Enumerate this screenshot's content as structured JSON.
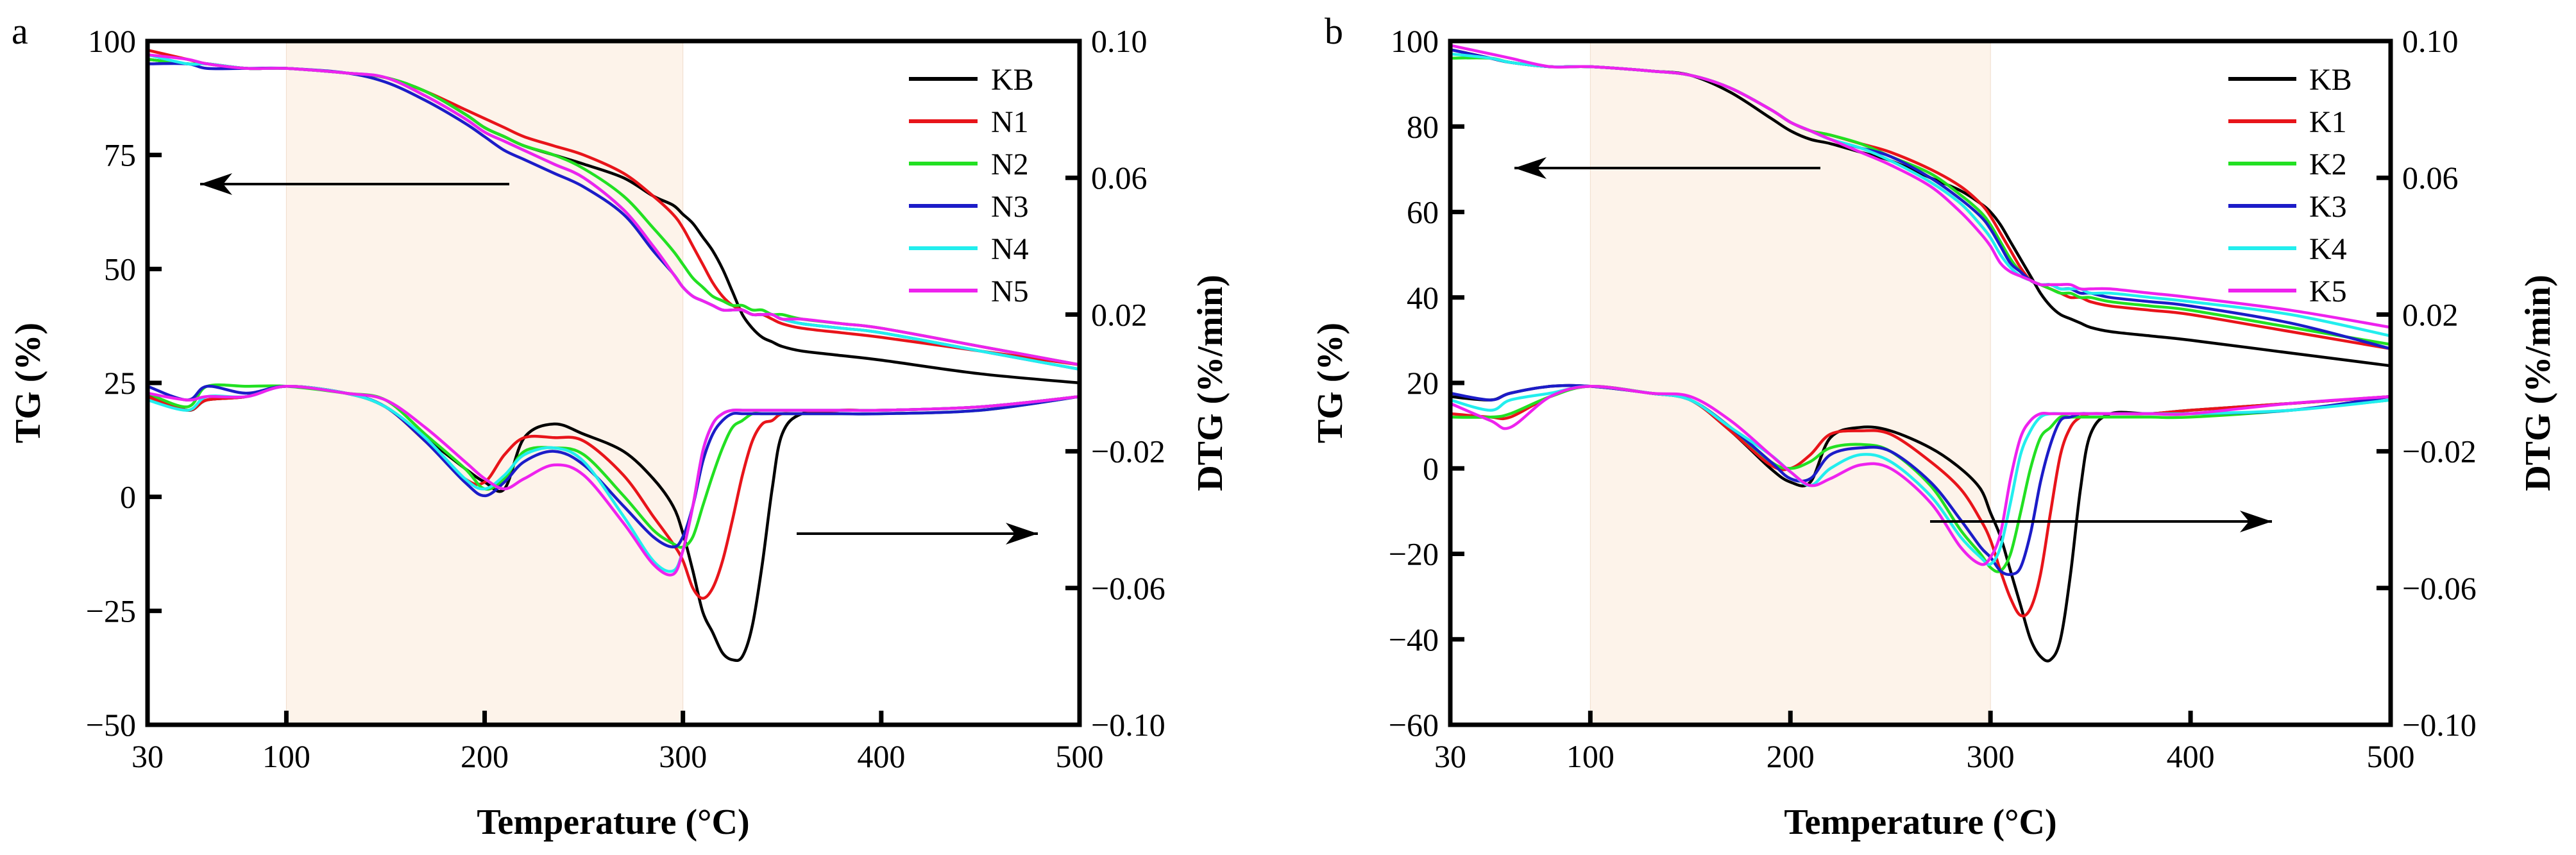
{
  "chart_data": [
    {
      "panel_label": "a",
      "type": "line",
      "xlabel": "Temperature (°C)",
      "ylabel": "TG (%)",
      "y2label": "DTG (%/min)",
      "xlim": [
        30,
        500
      ],
      "ylim": [
        -50,
        100
      ],
      "y2lim": [
        -0.1,
        0.1
      ],
      "xticks": [
        30,
        100,
        200,
        300,
        400,
        500
      ],
      "yticks": [
        100,
        75,
        50,
        25,
        0,
        -25,
        -50
      ],
      "y2ticks": [
        0.1,
        0.06,
        0.02,
        -0.02,
        -0.06,
        -0.1
      ],
      "shaded_region_x": [
        100,
        300
      ],
      "shaded_color": "#fdf3ea",
      "legend_position": "top-right",
      "annotations": [
        "arrow pointing left to TG axis",
        "arrow pointing right to DTG axis"
      ],
      "x": [
        30,
        50,
        60,
        80,
        100,
        130,
        150,
        170,
        190,
        200,
        210,
        220,
        235,
        250,
        270,
        285,
        295,
        300,
        305,
        310,
        315,
        320,
        325,
        330,
        335,
        340,
        345,
        350,
        360,
        380,
        400,
        450,
        500
      ],
      "series": [
        {
          "name": "KB",
          "color": "#000000",
          "TG": [
            96,
            95,
            95,
            94,
            94,
            93,
            92,
            89,
            84,
            81,
            79,
            77,
            75,
            73,
            70,
            66,
            64,
            62,
            60,
            57,
            54,
            50,
            45,
            40,
            37,
            35,
            34,
            33,
            32,
            31,
            30,
            27,
            25
          ],
          "DTG": [
            -0.003,
            -0.008,
            -0.005,
            -0.004,
            -0.001,
            -0.003,
            -0.007,
            -0.016,
            -0.025,
            -0.029,
            -0.031,
            -0.016,
            -0.012,
            -0.015,
            -0.02,
            -0.028,
            -0.036,
            -0.044,
            -0.055,
            -0.067,
            -0.073,
            -0.079,
            -0.081,
            -0.08,
            -0.071,
            -0.053,
            -0.031,
            -0.015,
            -0.009,
            -0.008,
            -0.008,
            -0.007,
            -0.004
          ]
        },
        {
          "name": "N1",
          "color": "#e8141a",
          "TG": [
            98,
            96,
            95,
            94,
            94,
            93,
            92,
            89,
            85,
            83,
            81,
            79,
            77,
            75,
            71,
            66,
            62,
            59,
            55,
            51,
            47,
            44,
            42,
            41,
            40,
            40,
            39,
            38,
            37,
            36,
            35,
            32,
            29
          ],
          "DTG": [
            -0.004,
            -0.008,
            -0.005,
            -0.004,
            -0.001,
            -0.003,
            -0.007,
            -0.017,
            -0.028,
            -0.029,
            -0.021,
            -0.016,
            -0.016,
            -0.017,
            -0.027,
            -0.039,
            -0.047,
            -0.052,
            -0.06,
            -0.063,
            -0.06,
            -0.052,
            -0.04,
            -0.027,
            -0.017,
            -0.012,
            -0.011,
            -0.009,
            -0.009,
            -0.008,
            -0.008,
            -0.007,
            -0.004
          ]
        },
        {
          "name": "N2",
          "color": "#22e022",
          "TG": [
            96,
            95,
            95,
            94,
            94,
            93,
            92,
            89,
            84,
            81,
            79,
            77,
            75,
            72,
            66,
            59,
            54,
            51,
            48,
            46,
            44,
            43,
            42,
            42,
            41,
            41,
            40,
            40,
            39,
            38,
            37,
            33,
            29
          ],
          "DTG": [
            -0.003,
            -0.007,
            -0.001,
            -0.001,
            -0.001,
            -0.003,
            -0.005,
            -0.015,
            -0.025,
            -0.031,
            -0.028,
            -0.02,
            -0.019,
            -0.021,
            -0.033,
            -0.043,
            -0.047,
            -0.048,
            -0.045,
            -0.036,
            -0.027,
            -0.019,
            -0.013,
            -0.011,
            -0.009,
            -0.009,
            -0.009,
            -0.009,
            -0.009,
            -0.009,
            -0.009,
            -0.008,
            -0.004
          ]
        },
        {
          "name": "N3",
          "color": "#1c1cc8",
          "TG": [
            95,
            95,
            94,
            94,
            94,
            93,
            91,
            87,
            82,
            79,
            76,
            74,
            71,
            68,
            62,
            54,
            49,
            46,
            44,
            43,
            42,
            41,
            41,
            41,
            40,
            40,
            40,
            39,
            38,
            37,
            36,
            32,
            28
          ],
          "DTG": [
            -0.001,
            -0.005,
            -0.001,
            -0.003,
            -0.001,
            -0.003,
            -0.007,
            -0.017,
            -0.029,
            -0.033,
            -0.029,
            -0.023,
            -0.02,
            -0.024,
            -0.036,
            -0.045,
            -0.048,
            -0.045,
            -0.036,
            -0.023,
            -0.015,
            -0.011,
            -0.009,
            -0.009,
            -0.009,
            -0.009,
            -0.009,
            -0.009,
            -0.009,
            -0.009,
            -0.009,
            -0.008,
            -0.004
          ]
        },
        {
          "name": "N4",
          "color": "#22eeee",
          "TG": [
            97,
            95,
            95,
            94,
            94,
            93,
            92,
            88,
            83,
            80,
            78,
            76,
            73,
            70,
            63,
            55,
            49,
            46,
            44,
            43,
            42,
            41,
            41,
            41,
            40,
            40,
            40,
            39,
            38,
            37,
            36,
            32,
            28
          ],
          "DTG": [
            -0.005,
            -0.008,
            -0.004,
            -0.004,
            -0.001,
            -0.003,
            -0.007,
            -0.016,
            -0.028,
            -0.031,
            -0.027,
            -0.021,
            -0.019,
            -0.023,
            -0.039,
            -0.052,
            -0.055,
            -0.049,
            -0.036,
            -0.02,
            -0.012,
            -0.009,
            -0.008,
            -0.008,
            -0.008,
            -0.008,
            -0.008,
            -0.008,
            -0.008,
            -0.008,
            -0.008,
            -0.007,
            -0.004
          ]
        },
        {
          "name": "N5",
          "color": "#ee22ee",
          "TG": [
            97,
            96,
            95,
            94,
            94,
            93,
            92,
            88,
            83,
            80,
            78,
            76,
            73,
            70,
            63,
            55,
            49,
            46,
            44,
            43,
            42,
            41,
            41,
            41,
            40,
            40,
            40,
            39,
            39,
            38,
            37,
            33,
            29
          ],
          "DTG": [
            -0.003,
            -0.005,
            -0.004,
            -0.004,
            -0.001,
            -0.003,
            -0.005,
            -0.013,
            -0.023,
            -0.028,
            -0.031,
            -0.028,
            -0.024,
            -0.027,
            -0.041,
            -0.053,
            -0.056,
            -0.049,
            -0.036,
            -0.02,
            -0.012,
            -0.009,
            -0.008,
            -0.008,
            -0.008,
            -0.008,
            -0.008,
            -0.008,
            -0.008,
            -0.008,
            -0.008,
            -0.007,
            -0.004
          ]
        }
      ]
    },
    {
      "panel_label": "b",
      "type": "line",
      "xlabel": "Temperature (°C)",
      "ylabel": "TG (%)",
      "y2label": "DTG (%/min)",
      "xlim": [
        30,
        500
      ],
      "ylim": [
        -60,
        100
      ],
      "y2lim": [
        -0.1,
        0.1
      ],
      "xticks": [
        30,
        100,
        200,
        300,
        400,
        500
      ],
      "yticks": [
        100,
        80,
        60,
        40,
        20,
        0,
        -20,
        -40,
        -60
      ],
      "y2ticks": [
        0.1,
        0.06,
        0.02,
        -0.02,
        -0.06,
        -0.1
      ],
      "shaded_region_x": [
        100,
        300
      ],
      "shaded_color": "#fdf3ea",
      "legend_position": "top-right",
      "annotations": [
        "arrow pointing left to TG axis",
        "arrow pointing right to DTG axis"
      ],
      "x": [
        30,
        50,
        60,
        80,
        100,
        130,
        150,
        170,
        190,
        200,
        210,
        220,
        235,
        250,
        270,
        285,
        295,
        300,
        305,
        310,
        315,
        320,
        325,
        330,
        335,
        340,
        345,
        350,
        360,
        380,
        400,
        450,
        500
      ],
      "series": [
        {
          "name": "KB",
          "color": "#000000",
          "TG": [
            98,
            96,
            95,
            94,
            94,
            93,
            92,
            88,
            82,
            79,
            77,
            76,
            74,
            72,
            68,
            65,
            62,
            60,
            57,
            53,
            49,
            45,
            41,
            38,
            36,
            35,
            34,
            33,
            32,
            31,
            30,
            27,
            24
          ],
          "DTG": [
            -0.004,
            -0.005,
            -0.003,
            -0.001,
            -0.001,
            -0.003,
            -0.005,
            -0.014,
            -0.025,
            -0.029,
            -0.029,
            -0.016,
            -0.013,
            -0.014,
            -0.019,
            -0.025,
            -0.031,
            -0.038,
            -0.045,
            -0.055,
            -0.065,
            -0.075,
            -0.08,
            -0.081,
            -0.075,
            -0.056,
            -0.031,
            -0.015,
            -0.009,
            -0.009,
            -0.008,
            -0.006,
            -0.004
          ]
        },
        {
          "name": "K1",
          "color": "#e8141a",
          "TG": [
            98,
            96,
            95,
            94,
            94,
            93,
            92,
            89,
            84,
            81,
            79,
            78,
            76,
            74,
            70,
            66,
            62,
            59,
            55,
            51,
            47,
            44,
            43,
            42,
            41,
            40,
            40,
            39,
            38,
            37,
            36,
            32,
            28
          ],
          "DTG": [
            -0.009,
            -0.01,
            -0.01,
            -0.004,
            -0.001,
            -0.003,
            -0.005,
            -0.014,
            -0.024,
            -0.025,
            -0.021,
            -0.015,
            -0.014,
            -0.015,
            -0.023,
            -0.031,
            -0.04,
            -0.046,
            -0.055,
            -0.063,
            -0.068,
            -0.066,
            -0.056,
            -0.038,
            -0.021,
            -0.013,
            -0.01,
            -0.009,
            -0.009,
            -0.009,
            -0.008,
            -0.006,
            -0.004
          ]
        },
        {
          "name": "K2",
          "color": "#22e022",
          "TG": [
            96,
            96,
            95,
            94,
            94,
            93,
            92,
            89,
            84,
            81,
            79,
            78,
            76,
            73,
            69,
            64,
            60,
            57,
            53,
            49,
            46,
            44,
            43,
            42,
            41,
            41,
            40,
            40,
            39,
            38,
            37,
            33,
            29
          ],
          "DTG": [
            -0.01,
            -0.01,
            -0.009,
            -0.004,
            -0.001,
            -0.003,
            -0.005,
            -0.013,
            -0.023,
            -0.025,
            -0.023,
            -0.019,
            -0.018,
            -0.02,
            -0.03,
            -0.043,
            -0.05,
            -0.054,
            -0.055,
            -0.05,
            -0.038,
            -0.025,
            -0.016,
            -0.013,
            -0.01,
            -0.01,
            -0.01,
            -0.01,
            -0.01,
            -0.01,
            -0.01,
            -0.008,
            -0.005
          ]
        },
        {
          "name": "K3",
          "color": "#1c1cc8",
          "TG": [
            98,
            96,
            95,
            94,
            94,
            93,
            92,
            89,
            84,
            81,
            79,
            77,
            75,
            73,
            68,
            63,
            59,
            56,
            52,
            48,
            46,
            44,
            43,
            43,
            42,
            42,
            41,
            41,
            40,
            39,
            38,
            34,
            28
          ],
          "DTG": [
            -0.003,
            -0.005,
            -0.003,
            -0.001,
            -0.001,
            -0.003,
            -0.005,
            -0.013,
            -0.023,
            -0.028,
            -0.028,
            -0.021,
            -0.019,
            -0.02,
            -0.029,
            -0.04,
            -0.048,
            -0.051,
            -0.055,
            -0.056,
            -0.054,
            -0.044,
            -0.029,
            -0.018,
            -0.011,
            -0.01,
            -0.009,
            -0.009,
            -0.009,
            -0.009,
            -0.009,
            -0.008,
            -0.004
          ]
        },
        {
          "name": "K4",
          "color": "#22eeee",
          "TG": [
            97,
            96,
            95,
            94,
            94,
            93,
            92,
            89,
            84,
            81,
            79,
            77,
            75,
            72,
            67,
            62,
            57,
            54,
            50,
            47,
            45,
            44,
            43,
            43,
            42,
            42,
            42,
            41,
            41,
            40,
            39,
            36,
            31
          ],
          "DTG": [
            -0.005,
            -0.008,
            -0.005,
            -0.003,
            -0.001,
            -0.003,
            -0.005,
            -0.013,
            -0.021,
            -0.026,
            -0.03,
            -0.025,
            -0.021,
            -0.023,
            -0.033,
            -0.045,
            -0.051,
            -0.053,
            -0.048,
            -0.035,
            -0.021,
            -0.014,
            -0.01,
            -0.009,
            -0.009,
            -0.009,
            -0.009,
            -0.009,
            -0.009,
            -0.009,
            -0.009,
            -0.008,
            -0.005
          ]
        },
        {
          "name": "K5",
          "color": "#ee22ee",
          "TG": [
            99,
            97,
            96,
            94,
            94,
            93,
            92,
            89,
            84,
            81,
            79,
            77,
            74,
            71,
            66,
            60,
            55,
            52,
            48,
            46,
            45,
            44,
            43,
            43,
            43,
            43,
            42,
            42,
            42,
            41,
            40,
            37,
            33
          ],
          "DTG": [
            -0.006,
            -0.011,
            -0.013,
            -0.004,
            -0.001,
            -0.003,
            -0.004,
            -0.011,
            -0.021,
            -0.026,
            -0.03,
            -0.028,
            -0.024,
            -0.025,
            -0.035,
            -0.048,
            -0.053,
            -0.051,
            -0.044,
            -0.028,
            -0.016,
            -0.011,
            -0.009,
            -0.009,
            -0.009,
            -0.009,
            -0.009,
            -0.009,
            -0.009,
            -0.009,
            -0.009,
            -0.006,
            -0.004
          ]
        }
      ]
    }
  ]
}
